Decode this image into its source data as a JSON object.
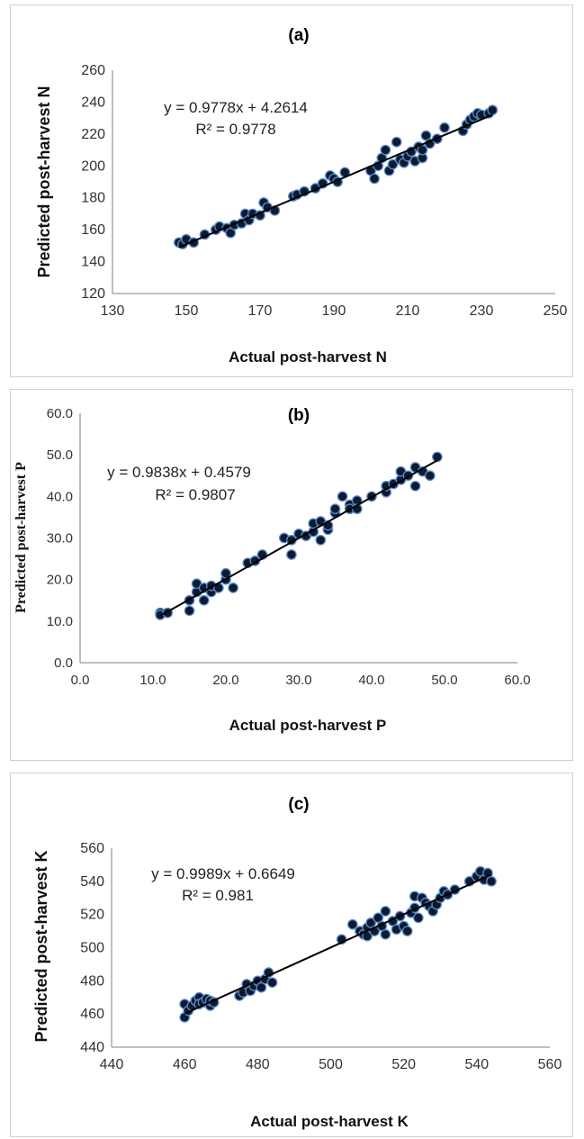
{
  "chart_data": [
    {
      "type": "scatter",
      "title": "(a)",
      "xlabel": "Actual post-harvest N",
      "ylabel": "Predicted post-harvest N",
      "xlim": [
        130,
        250
      ],
      "ylim": [
        120,
        260
      ],
      "xticks": [
        "130",
        "150",
        "170",
        "190",
        "210",
        "230",
        "250"
      ],
      "yticks": [
        "120",
        "140",
        "160",
        "180",
        "200",
        "220",
        "240",
        "260"
      ],
      "equation": "y = 0.9778x + 4.2614",
      "r2": "R² = 0.9778",
      "trendline": {
        "slope": 0.9778,
        "intercept": 4.2614,
        "x_range": [
          148,
          233
        ]
      },
      "grid": false,
      "marker_color": "#0d1b2a",
      "marker_edge": "#5b8bd6",
      "points": [
        [
          148,
          152
        ],
        [
          149,
          151
        ],
        [
          150,
          154
        ],
        [
          152,
          152
        ],
        [
          155,
          157
        ],
        [
          158,
          160
        ],
        [
          159,
          162
        ],
        [
          161,
          161
        ],
        [
          162,
          158
        ],
        [
          163,
          163
        ],
        [
          165,
          164
        ],
        [
          166,
          170
        ],
        [
          167,
          166
        ],
        [
          168,
          170
        ],
        [
          170,
          169
        ],
        [
          171,
          177
        ],
        [
          172,
          174
        ],
        [
          174,
          172
        ],
        [
          179,
          181
        ],
        [
          180,
          182
        ],
        [
          182,
          184
        ],
        [
          185,
          186
        ],
        [
          187,
          189
        ],
        [
          189,
          194
        ],
        [
          190,
          192
        ],
        [
          191,
          190
        ],
        [
          193,
          196
        ],
        [
          200,
          197
        ],
        [
          201,
          192
        ],
        [
          202,
          200
        ],
        [
          203,
          205
        ],
        [
          204,
          210
        ],
        [
          205,
          197
        ],
        [
          206,
          201
        ],
        [
          207,
          215
        ],
        [
          208,
          204
        ],
        [
          209,
          202
        ],
        [
          210,
          206
        ],
        [
          211,
          209
        ],
        [
          212,
          203
        ],
        [
          213,
          212
        ],
        [
          214,
          205
        ],
        [
          214,
          210
        ],
        [
          215,
          219
        ],
        [
          216,
          214
        ],
        [
          218,
          217
        ],
        [
          220,
          224
        ],
        [
          225,
          222
        ],
        [
          226,
          226
        ],
        [
          227,
          229
        ],
        [
          228,
          231
        ],
        [
          229,
          233
        ],
        [
          230,
          232
        ],
        [
          232,
          233
        ],
        [
          233,
          235
        ]
      ]
    },
    {
      "type": "scatter",
      "title": "(b)",
      "xlabel": "Actual post-harvest P",
      "ylabel": "Predicted post-harvest P",
      "xlim": [
        0,
        60
      ],
      "ylim": [
        0,
        60
      ],
      "xticks": [
        "0.0",
        "10.0",
        "20.0",
        "30.0",
        "40.0",
        "50.0",
        "60.0"
      ],
      "yticks": [
        "0.0",
        "10.0",
        "20.0",
        "30.0",
        "40.0",
        "50.0",
        "60.0"
      ],
      "equation": "y = 0.9838x + 0.4579",
      "r2": "R² = 0.9807",
      "trendline": {
        "slope": 0.9838,
        "intercept": 0.4579,
        "x_range": [
          11,
          49
        ]
      },
      "grid": false,
      "marker_color": "#0d1b2a",
      "marker_edge": "#5b8bd6",
      "points": [
        [
          11,
          12
        ],
        [
          11,
          11.5
        ],
        [
          12,
          12
        ],
        [
          15,
          12.5
        ],
        [
          15,
          15
        ],
        [
          16,
          17
        ],
        [
          16,
          19
        ],
        [
          17,
          18
        ],
        [
          17,
          15
        ],
        [
          18,
          17
        ],
        [
          18,
          18.5
        ],
        [
          19,
          18
        ],
        [
          20,
          20
        ],
        [
          20,
          21.5
        ],
        [
          21,
          18
        ],
        [
          23,
          24
        ],
        [
          24,
          24.5
        ],
        [
          25,
          26
        ],
        [
          28,
          30
        ],
        [
          29,
          26
        ],
        [
          29,
          29.5
        ],
        [
          30,
          31
        ],
        [
          31,
          30.5
        ],
        [
          32,
          31.5
        ],
        [
          32,
          33.5
        ],
        [
          33,
          29.5
        ],
        [
          33,
          34
        ],
        [
          34,
          32
        ],
        [
          34,
          33
        ],
        [
          35,
          36
        ],
        [
          35,
          37
        ],
        [
          36,
          40
        ],
        [
          37,
          38
        ],
        [
          37,
          37
        ],
        [
          38,
          39
        ],
        [
          38,
          37
        ],
        [
          40,
          40
        ],
        [
          42,
          41
        ],
        [
          42,
          42.5
        ],
        [
          43,
          43
        ],
        [
          44,
          44
        ],
        [
          44,
          46
        ],
        [
          45,
          45
        ],
        [
          46,
          42.5
        ],
        [
          46,
          47
        ],
        [
          47,
          46
        ],
        [
          48,
          45
        ],
        [
          49,
          49.5
        ]
      ]
    },
    {
      "type": "scatter",
      "title": "(c)",
      "xlabel": "Actual post-harvest K",
      "ylabel": "Predicted post-harvest K",
      "xlim": [
        440,
        560
      ],
      "ylim": [
        440,
        560
      ],
      "xticks": [
        "440",
        "460",
        "480",
        "500",
        "520",
        "540",
        "560"
      ],
      "yticks": [
        "440",
        "460",
        "480",
        "500",
        "520",
        "540",
        "560"
      ],
      "equation": "y = 0.9989x + 0.6649",
      "r2": "R² = 0.981",
      "trendline": {
        "slope": 0.9989,
        "intercept": 0.6649,
        "x_range": [
          460,
          544
        ]
      },
      "grid": false,
      "marker_color": "#0d1b2a",
      "marker_edge": "#5b8bd6",
      "points": [
        [
          460,
          458
        ],
        [
          460,
          466
        ],
        [
          461,
          462
        ],
        [
          462,
          465
        ],
        [
          463,
          468
        ],
        [
          464,
          470
        ],
        [
          464,
          466
        ],
        [
          465,
          467
        ],
        [
          466,
          469
        ],
        [
          467,
          465
        ],
        [
          467,
          468
        ],
        [
          468,
          467
        ],
        [
          475,
          471
        ],
        [
          476,
          473
        ],
        [
          477,
          478
        ],
        [
          478,
          474
        ],
        [
          479,
          477
        ],
        [
          480,
          480
        ],
        [
          481,
          476
        ],
        [
          482,
          481
        ],
        [
          483,
          485
        ],
        [
          484,
          479
        ],
        [
          503,
          505
        ],
        [
          506,
          514
        ],
        [
          508,
          510
        ],
        [
          509,
          508
        ],
        [
          510,
          512
        ],
        [
          510,
          507
        ],
        [
          511,
          515
        ],
        [
          512,
          510
        ],
        [
          513,
          518
        ],
        [
          514,
          513
        ],
        [
          515,
          508
        ],
        [
          515,
          522
        ],
        [
          517,
          516
        ],
        [
          518,
          511
        ],
        [
          519,
          519
        ],
        [
          520,
          513
        ],
        [
          521,
          510
        ],
        [
          522,
          521
        ],
        [
          523,
          524
        ],
        [
          523,
          531
        ],
        [
          524,
          518
        ],
        [
          525,
          530
        ],
        [
          526,
          527
        ],
        [
          527,
          525
        ],
        [
          528,
          522
        ],
        [
          529,
          526
        ],
        [
          530,
          530
        ],
        [
          531,
          534
        ],
        [
          532,
          532
        ],
        [
          534,
          535
        ],
        [
          538,
          540
        ],
        [
          540,
          543
        ],
        [
          541,
          546
        ],
        [
          542,
          541
        ],
        [
          543,
          545
        ],
        [
          544,
          540
        ]
      ]
    }
  ]
}
